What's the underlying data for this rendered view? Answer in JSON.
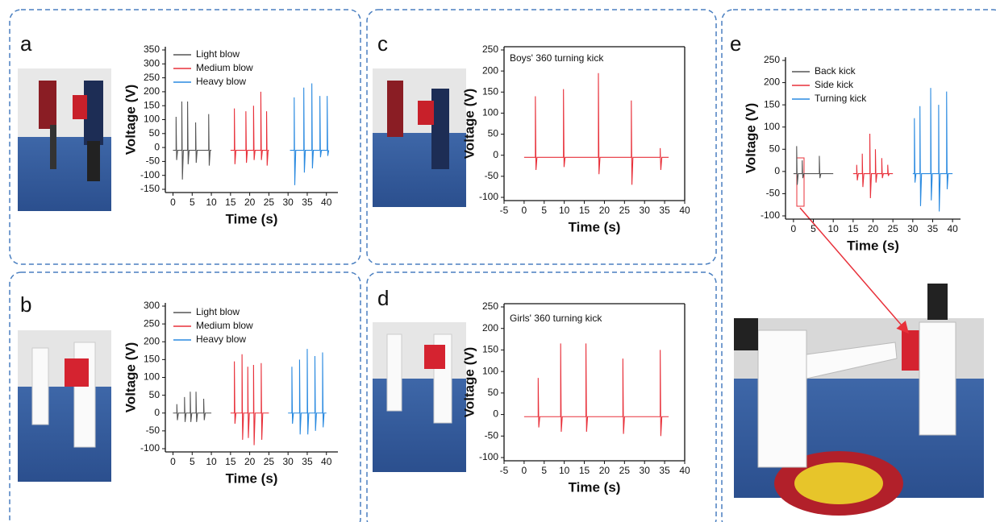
{
  "chart_data": [
    {
      "type": "line",
      "panel": "a",
      "xlabel": "Time (s)",
      "ylabel": "Voltage (V)",
      "xlim": [
        -2,
        43
      ],
      "ylim": [
        -150,
        350
      ],
      "xticks": [
        0,
        5,
        10,
        15,
        20,
        25,
        30,
        35,
        40
      ],
      "yticks": [
        -150,
        -100,
        -50,
        0,
        50,
        100,
        150,
        200,
        250,
        300,
        350
      ],
      "series": [
        {
          "name": "Light blow",
          "color": "#555555",
          "x": [
            0,
            0.8,
            0.8,
            0.95,
            1.2,
            2.3,
            2.3,
            2.45,
            2.7,
            3.8,
            3.8,
            3.95,
            4.2,
            5.9,
            5.9,
            6.05,
            6.3,
            9.3,
            9.3,
            9.45,
            9.7,
            10
          ],
          "values": [
            -10,
            -10,
            110,
            -45,
            -10,
            -10,
            165,
            -115,
            -10,
            -10,
            165,
            -60,
            -10,
            -10,
            90,
            -55,
            -10,
            -10,
            120,
            -65,
            -10,
            -10
          ]
        },
        {
          "name": "Medium blow",
          "color": "#e8303a",
          "x": [
            15,
            16,
            16,
            16.15,
            16.4,
            19,
            19,
            19.15,
            19.4,
            21,
            21,
            21.15,
            21.4,
            22.9,
            22.9,
            23.05,
            23.3,
            24.4,
            24.4,
            24.55,
            24.8,
            25
          ],
          "values": [
            -10,
            -10,
            140,
            -60,
            -10,
            -10,
            130,
            -55,
            -10,
            -10,
            150,
            -45,
            -10,
            -10,
            200,
            -45,
            -10,
            -10,
            130,
            -65,
            -10,
            -10
          ]
        },
        {
          "name": "Heavy blow",
          "color": "#2a8ae0",
          "x": [
            30.5,
            31.6,
            31.6,
            31.75,
            32,
            34.1,
            34.1,
            34.25,
            34.5,
            36.2,
            36.2,
            36.35,
            36.6,
            38.3,
            38.3,
            38.45,
            38.7,
            40.2,
            40.2,
            40.35,
            40.6
          ],
          "values": [
            -10,
            -10,
            180,
            -135,
            -10,
            -10,
            215,
            -90,
            -10,
            -10,
            230,
            -75,
            -10,
            -10,
            185,
            -35,
            -10,
            -10,
            185,
            -30,
            -10
          ]
        }
      ]
    },
    {
      "type": "line",
      "panel": "b",
      "xlabel": "Time (s)",
      "ylabel": "Voltage (V)",
      "xlim": [
        -2,
        43
      ],
      "ylim": [
        -100,
        300
      ],
      "xticks": [
        0,
        5,
        10,
        15,
        20,
        25,
        30,
        35,
        40
      ],
      "yticks": [
        -100,
        -50,
        0,
        50,
        100,
        150,
        200,
        250,
        300
      ],
      "series": [
        {
          "name": "Light blow",
          "color": "#555555",
          "x": [
            0,
            1,
            1,
            1.15,
            1.4,
            3,
            3,
            3.15,
            3.4,
            4.5,
            4.5,
            4.65,
            4.9,
            6,
            6,
            6.15,
            6.4,
            8,
            8,
            8.15,
            8.4,
            10
          ],
          "values": [
            0,
            0,
            25,
            -20,
            0,
            0,
            45,
            -25,
            0,
            0,
            60,
            -25,
            0,
            0,
            60,
            -25,
            0,
            0,
            40,
            -20,
            0,
            0
          ]
        },
        {
          "name": "Medium blow",
          "color": "#e8303a",
          "x": [
            15,
            16,
            16,
            16.15,
            16.4,
            18,
            18,
            18.15,
            18.4,
            19.5,
            19.5,
            19.65,
            19.9,
            21,
            21,
            21.15,
            21.4,
            23,
            23,
            23.15,
            23.4,
            25
          ],
          "values": [
            0,
            0,
            145,
            -30,
            0,
            0,
            165,
            -75,
            0,
            0,
            130,
            -70,
            0,
            0,
            135,
            -90,
            0,
            0,
            140,
            -75,
            0,
            0
          ]
        },
        {
          "name": "Heavy blow",
          "color": "#2a8ae0",
          "x": [
            30,
            31,
            31,
            31.15,
            31.4,
            33,
            33,
            33.15,
            33.4,
            35,
            35,
            35.15,
            35.4,
            37,
            37,
            37.15,
            37.4,
            39,
            39,
            39.15,
            39.4,
            40
          ],
          "values": [
            0,
            0,
            130,
            -30,
            0,
            0,
            150,
            -60,
            0,
            0,
            180,
            -60,
            0,
            0,
            160,
            -50,
            0,
            0,
            170,
            -40,
            0,
            0
          ]
        }
      ]
    },
    {
      "type": "line",
      "panel": "c",
      "xlabel": "Time (s)",
      "ylabel": "Voltage (V)",
      "annotation": "Boys' 360 turning kick",
      "xlim": [
        -5,
        40
      ],
      "ylim": [
        -100,
        250
      ],
      "xticks": [
        -5,
        0,
        5,
        10,
        15,
        20,
        25,
        30,
        35,
        40
      ],
      "yticks": [
        -100,
        -50,
        0,
        50,
        100,
        150,
        200,
        250
      ],
      "series": [
        {
          "color": "#e8303a",
          "x": [
            0,
            2.8,
            2.8,
            2.95,
            3.2,
            9.8,
            9.8,
            9.95,
            10.2,
            18.5,
            18.5,
            18.65,
            18.9,
            26.7,
            26.7,
            26.85,
            27.1,
            33.9,
            33.9,
            34.05,
            34.3,
            36
          ],
          "values": [
            -5,
            -5,
            140,
            -35,
            -5,
            -5,
            157,
            -28,
            -5,
            -5,
            195,
            -45,
            -5,
            -5,
            130,
            -70,
            -5,
            -5,
            17,
            -35,
            -5,
            -5
          ]
        }
      ]
    },
    {
      "type": "line",
      "panel": "d",
      "xlabel": "Time (s)",
      "ylabel": "Voltage (V)",
      "annotation": "Girls' 360 turning kick",
      "xlim": [
        -5,
        40
      ],
      "ylim": [
        -100,
        250
      ],
      "xticks": [
        -5,
        0,
        5,
        10,
        15,
        20,
        25,
        30,
        35,
        40
      ],
      "yticks": [
        -100,
        -50,
        0,
        50,
        100,
        150,
        200,
        250
      ],
      "series": [
        {
          "color": "#e8303a",
          "x": [
            0,
            3.5,
            3.5,
            3.65,
            3.9,
            9.1,
            9.1,
            9.25,
            9.5,
            15.4,
            15.4,
            15.55,
            15.8,
            24.6,
            24.6,
            24.75,
            25,
            33.9,
            33.9,
            34.05,
            34.3,
            36
          ],
          "values": [
            -5,
            -5,
            85,
            -30,
            -5,
            -5,
            165,
            -40,
            -5,
            -5,
            165,
            -40,
            -5,
            -5,
            130,
            -45,
            -5,
            -5,
            150,
            -50,
            -5,
            -5
          ]
        }
      ]
    },
    {
      "type": "line",
      "panel": "e",
      "xlabel": "Time (s)",
      "ylabel": "Voltage (V)",
      "xlim": [
        -2,
        42
      ],
      "ylim": [
        -100,
        250
      ],
      "xticks": [
        0,
        5,
        10,
        15,
        20,
        25,
        30,
        35,
        40
      ],
      "yticks": [
        -100,
        -50,
        0,
        50,
        100,
        150,
        200,
        250
      ],
      "series": [
        {
          "name": "Back kick",
          "color": "#555555",
          "x": [
            0,
            0.8,
            0.8,
            0.95,
            1.2,
            2.2,
            2.2,
            2.35,
            2.6,
            6.5,
            6.5,
            6.65,
            6.9,
            10
          ],
          "values": [
            -5,
            -5,
            57,
            -30,
            -5,
            -5,
            25,
            -15,
            -5,
            -5,
            35,
            -15,
            -5,
            -5
          ]
        },
        {
          "name": "Side kick",
          "color": "#e8303a",
          "x": [
            15,
            15.9,
            15.9,
            16.05,
            16.3,
            17.3,
            17.3,
            17.45,
            17.7,
            19.2,
            19.2,
            19.35,
            19.6,
            20.6,
            20.6,
            20.75,
            21,
            22.2,
            22.2,
            22.35,
            22.6,
            23.7,
            23.7,
            23.85,
            24.1,
            25
          ],
          "values": [
            -5,
            -5,
            15,
            -20,
            -5,
            -5,
            40,
            -35,
            -5,
            -5,
            85,
            -60,
            -5,
            -5,
            50,
            -25,
            -5,
            -5,
            30,
            -15,
            -5,
            -5,
            15,
            -10,
            -5,
            -5
          ]
        },
        {
          "name": "Turning kick",
          "color": "#2a8ae0",
          "x": [
            30,
            30.4,
            30.4,
            30.55,
            30.8,
            31.8,
            31.8,
            31.95,
            32.2,
            34.5,
            34.5,
            34.65,
            34.9,
            36.5,
            36.5,
            36.65,
            36.9,
            38.5,
            38.5,
            38.65,
            38.9,
            40
          ],
          "values": [
            -5,
            -5,
            120,
            -25,
            -5,
            -5,
            147,
            -78,
            -5,
            -5,
            188,
            -65,
            -5,
            -5,
            150,
            -90,
            -5,
            -5,
            180,
            -40,
            -5,
            -5
          ]
        }
      ]
    }
  ]
}
